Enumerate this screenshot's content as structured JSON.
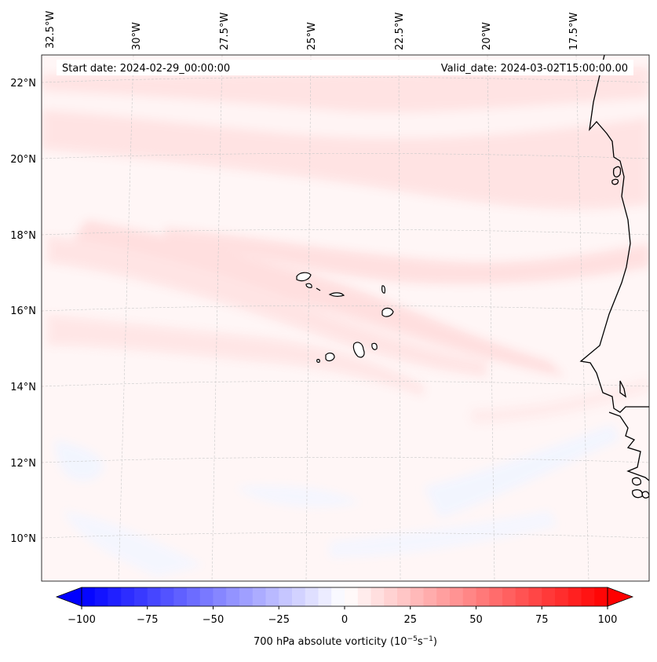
{
  "header": {
    "start_date": "Start date: 2024-02-29_00:00:00",
    "valid_date": "Valid_date: 2024-03-02T15:00:00.00"
  },
  "map": {
    "lon_ticks": [
      "32.5°W",
      "30°W",
      "27.5°W",
      "25°W",
      "22.5°W",
      "20°W",
      "17.5°W"
    ],
    "lat_ticks": [
      "22°N",
      "20°N",
      "18°N",
      "16°N",
      "14°N",
      "12°N",
      "10°N"
    ],
    "field": "700 hPa absolute vorticity",
    "features": [
      "Cabo Verde islands",
      "West African coastline"
    ]
  },
  "colorbar": {
    "label": "700 hPa absolute vorticity (10",
    "label_exp1": "−5",
    "label_mid": "s",
    "label_exp2": "−1",
    "label_close": ")",
    "ticks": [
      "−100",
      "−75",
      "−50",
      "−25",
      "0",
      "25",
      "50",
      "75",
      "100"
    ],
    "min": -100,
    "max": 100,
    "step": 5,
    "neg_color": "#0000ff",
    "pos_color": "#ff0000"
  },
  "colors": {
    "coast": "#000000",
    "grid": "#c8c8c8",
    "weak_positive": "#ffe2e2",
    "near_zero": "#fff6f6",
    "weak_negative": "#f4f6ff"
  }
}
